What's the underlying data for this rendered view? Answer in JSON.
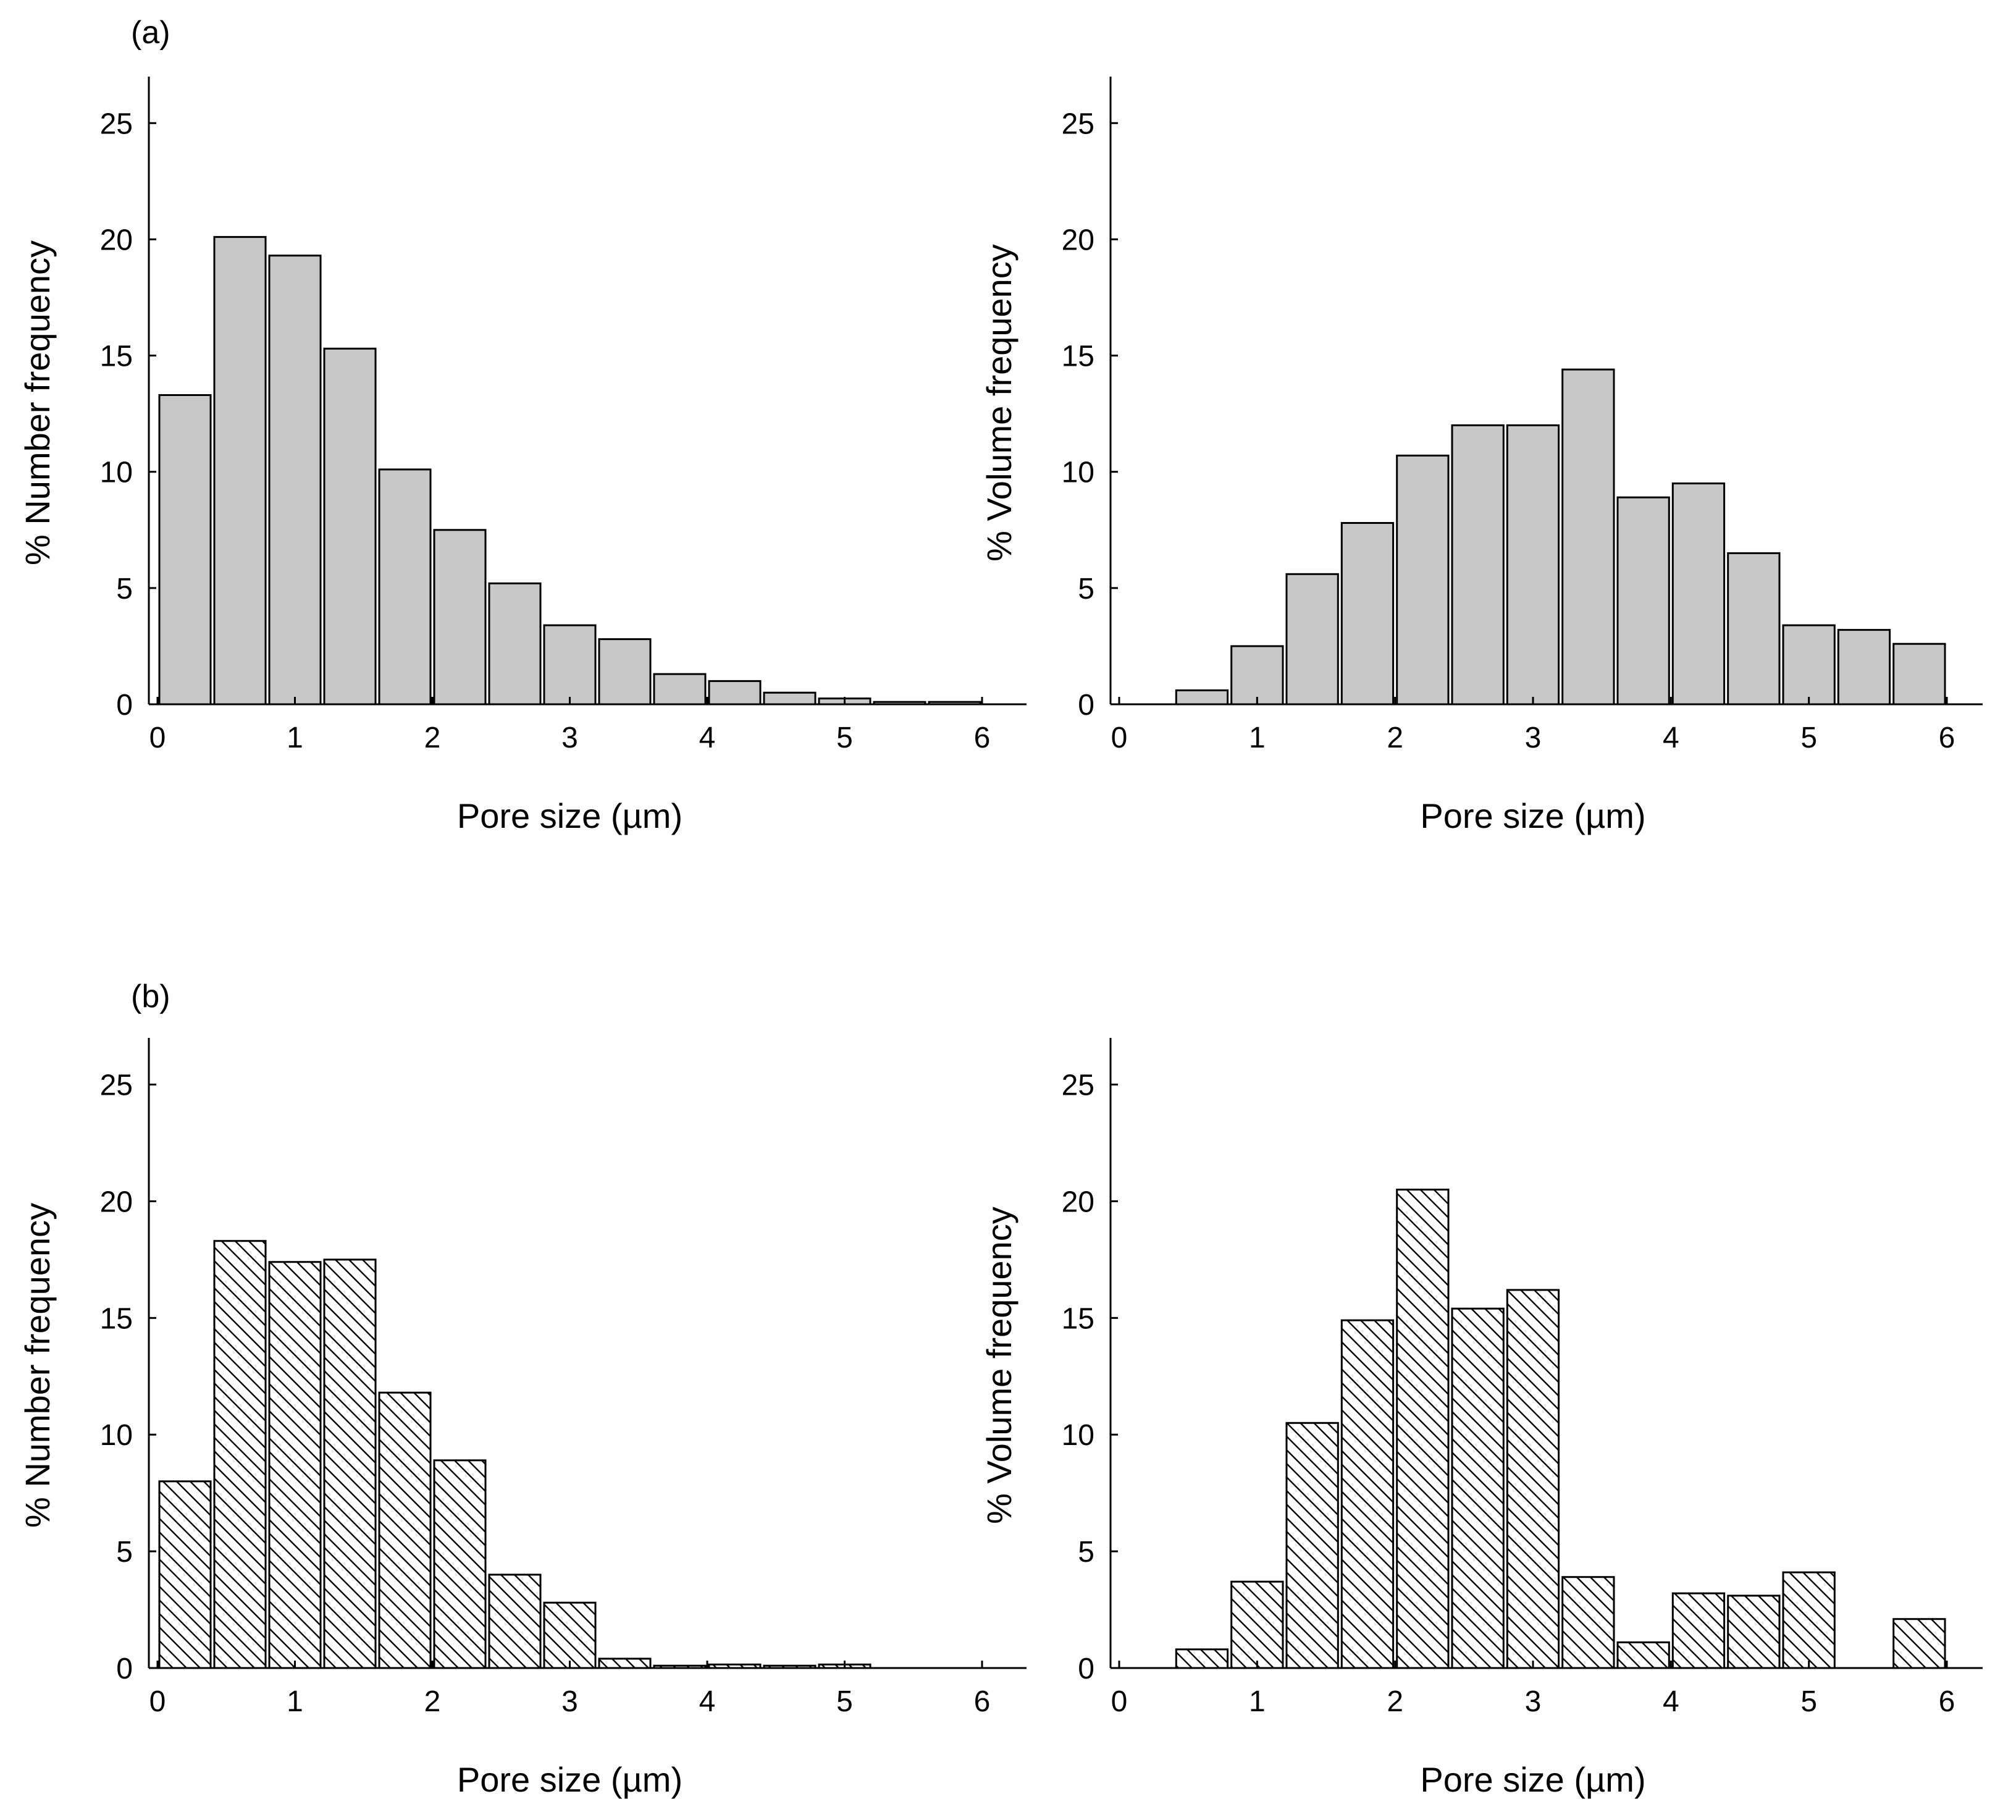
{
  "figure": {
    "panel_labels": [
      "(a)",
      "(b)"
    ]
  },
  "colors": {
    "bar_fill_solid": "#c8c8c8",
    "bar_stroke": "#000000",
    "hatch": "#000000"
  },
  "chart_data": [
    {
      "id": "a-number",
      "type": "bar",
      "panel": "(a)",
      "fill": "solid",
      "title": "",
      "xlabel": "Pore size (µm)",
      "ylabel": "% Number frequency",
      "xlim": [
        0,
        6.3
      ],
      "ylim": [
        0,
        27
      ],
      "xticks": [
        0,
        1,
        2,
        3,
        4,
        5,
        6
      ],
      "yticks": [
        0,
        5,
        10,
        15,
        20,
        25
      ],
      "bin_width": 0.4,
      "bin_starts": [
        0,
        0.4,
        0.8,
        1.2,
        1.6,
        2.0,
        2.4,
        2.8,
        3.2,
        3.6,
        4.0,
        4.4,
        4.8,
        5.2,
        5.6
      ],
      "values": [
        13.3,
        20.1,
        19.3,
        15.3,
        10.1,
        7.5,
        5.2,
        3.4,
        2.8,
        1.3,
        1.0,
        0.5,
        0.25,
        0.1,
        0.1
      ]
    },
    {
      "id": "a-volume",
      "type": "bar",
      "panel": "(a)",
      "fill": "solid",
      "title": "",
      "xlabel": "Pore size (µm)",
      "ylabel": "% Volume frequency",
      "xlim": [
        0,
        6.3
      ],
      "ylim": [
        0,
        27
      ],
      "xticks": [
        0,
        1,
        2,
        3,
        4,
        5,
        6
      ],
      "yticks": [
        0,
        5,
        10,
        15,
        20,
        25
      ],
      "bin_width": 0.4,
      "bin_starts": [
        0.4,
        0.8,
        1.2,
        1.6,
        2.0,
        2.4,
        2.8,
        3.2,
        3.6,
        4.0,
        4.4,
        4.8,
        5.2,
        5.6
      ],
      "values": [
        0.6,
        2.5,
        5.6,
        7.8,
        10.7,
        12.0,
        12.0,
        14.4,
        8.9,
        9.5,
        6.5,
        3.4,
        3.2,
        2.6
      ]
    },
    {
      "id": "b-number",
      "type": "bar",
      "panel": "(b)",
      "fill": "hatch",
      "title": "",
      "xlabel": "Pore size (µm)",
      "ylabel": "% Number frequency",
      "xlim": [
        0,
        6.3
      ],
      "ylim": [
        0,
        27
      ],
      "xticks": [
        0,
        1,
        2,
        3,
        4,
        5,
        6
      ],
      "yticks": [
        0,
        5,
        10,
        15,
        20,
        25
      ],
      "bin_width": 0.4,
      "bin_starts": [
        0,
        0.4,
        0.8,
        1.2,
        1.6,
        2.0,
        2.4,
        2.8,
        3.2,
        3.6,
        4.0,
        4.4,
        4.8
      ],
      "values": [
        8.0,
        18.3,
        17.4,
        17.5,
        11.8,
        8.9,
        4.0,
        2.8,
        0.4,
        0.1,
        0.15,
        0.1,
        0.15
      ]
    },
    {
      "id": "b-volume",
      "type": "bar",
      "panel": "(b)",
      "fill": "hatch",
      "title": "",
      "xlabel": "Pore size (µm)",
      "ylabel": "% Volume frequency",
      "xlim": [
        0,
        6.3
      ],
      "ylim": [
        0,
        27
      ],
      "xticks": [
        0,
        1,
        2,
        3,
        4,
        5,
        6
      ],
      "yticks": [
        0,
        5,
        10,
        15,
        20,
        25
      ],
      "bin_width": 0.4,
      "bin_starts": [
        0.4,
        0.8,
        1.2,
        1.6,
        2.0,
        2.4,
        2.8,
        3.2,
        3.6,
        4.0,
        4.4,
        4.8,
        5.6
      ],
      "values": [
        0.8,
        3.7,
        10.5,
        14.9,
        20.5,
        15.4,
        16.2,
        3.9,
        1.1,
        3.2,
        3.1,
        4.1,
        2.1
      ]
    }
  ]
}
